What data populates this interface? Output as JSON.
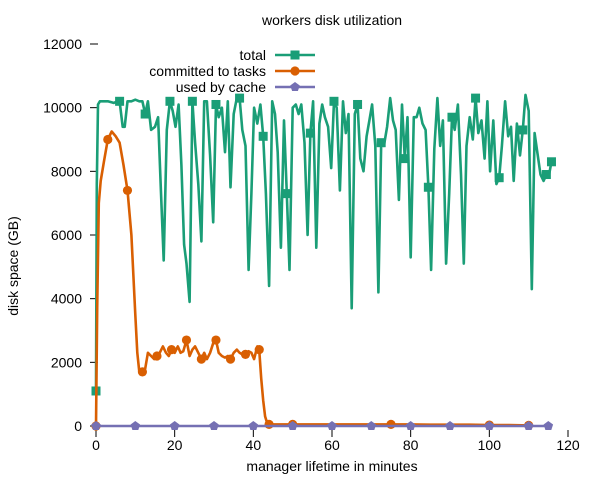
{
  "chart_data": {
    "type": "line",
    "title": "workers disk utilization",
    "xlabel": "manager lifetime in minutes",
    "ylabel": "disk space (GB)",
    "xlim": [
      0,
      120
    ],
    "ylim": [
      0,
      12000
    ],
    "x_ticks": [
      0,
      20,
      40,
      60,
      80,
      100,
      120
    ],
    "y_ticks": [
      0,
      2000,
      4000,
      6000,
      8000,
      10000,
      12000
    ],
    "grid": false,
    "legend_position": "top-right",
    "series": [
      {
        "name": "total",
        "color": "#1a9e77",
        "marker": "square",
        "x": [
          0,
          0.2,
          0.5,
          1.0,
          2.0,
          3.0,
          4.5,
          5.5,
          6.0,
          6.8,
          7.3,
          8.0,
          9.0,
          10.0,
          11.0,
          11.8,
          12.5,
          13.2,
          14.0,
          15.0,
          15.8,
          16.5,
          17.2,
          18.0,
          18.8,
          19.5,
          20.2,
          21.0,
          21.7,
          22.4,
          23.0,
          23.8,
          24.5,
          25.2,
          26.0,
          26.8,
          27.5,
          28.2,
          29.0,
          29.8,
          30.5,
          31.2,
          32.0,
          32.8,
          33.5,
          34.2,
          35.0,
          35.8,
          36.5,
          37.2,
          38.0,
          38.8,
          39.5,
          40.2,
          41.0,
          41.8,
          42.5,
          43.2,
          44.0,
          44.8,
          45.5,
          46.2,
          47.0,
          47.8,
          48.5,
          49.2,
          50.0,
          50.8,
          51.5,
          52.2,
          53.0,
          53.8,
          54.5,
          55.2,
          56.0,
          56.8,
          57.5,
          58.2,
          59.0,
          59.8,
          60.5,
          61.2,
          62.0,
          62.8,
          63.5,
          64.2,
          65.0,
          65.8,
          66.5,
          67.2,
          68.0,
          68.8,
          69.5,
          70.2,
          71.0,
          71.8,
          72.5,
          73.2,
          74.0,
          74.8,
          75.5,
          76.2,
          77.0,
          77.8,
          78.5,
          79.2,
          80.0,
          80.8,
          81.5,
          82.2,
          83.0,
          83.8,
          84.5,
          85.2,
          86.0,
          86.8,
          87.5,
          88.2,
          89.0,
          89.8,
          90.5,
          91.2,
          92.0,
          92.8,
          93.5,
          94.2,
          95.0,
          95.8,
          96.5,
          97.2,
          98.0,
          98.8,
          99.5,
          100.2,
          101.0,
          101.8,
          102.5,
          103.2,
          104.0,
          104.8,
          105.5,
          106.2,
          107.0,
          107.8,
          108.5,
          109.2,
          110.0,
          110.8,
          111.5,
          112.2,
          113.0,
          113.8,
          114.5,
          115.2,
          115.8
        ],
        "values": [
          1100,
          7600,
          10100,
          10200,
          10200,
          10200,
          10150,
          10200,
          10200,
          9400,
          9400,
          10200,
          10200,
          10250,
          10200,
          10200,
          9800,
          10200,
          9300,
          9400,
          9700,
          7400,
          5200,
          9300,
          10200,
          9900,
          9400,
          10100,
          8200,
          5700,
          5100,
          3900,
          10200,
          8900,
          7600,
          5800,
          10200,
          10200,
          8500,
          6400,
          10100,
          9700,
          10000,
          8600,
          10200,
          7500,
          9800,
          10300,
          10300,
          9300,
          8800,
          4900,
          7300,
          10000,
          9500,
          10100,
          9100,
          7300,
          4400,
          10200,
          9800,
          8600,
          5600,
          9600,
          7300,
          4900,
          10000,
          10100,
          9800,
          10100,
          8900,
          6000,
          9200,
          10200,
          5600,
          9500,
          10100,
          9700,
          9400,
          8100,
          10200,
          10000,
          7400,
          10200,
          9200,
          9800,
          3700,
          9800,
          10100,
          8400,
          8000,
          9100,
          9600,
          10100,
          8800,
          4200,
          8900,
          8800,
          9400,
          10300,
          9600,
          9300,
          7100,
          10100,
          8400,
          9700,
          5300,
          9700,
          9700,
          10000,
          9500,
          9300,
          7500,
          4900,
          8700,
          10300,
          8800,
          9600,
          5100,
          7300,
          9700,
          9300,
          10100,
          7900,
          5100,
          8800,
          9700,
          9000,
          10300,
          9200,
          9600,
          8400,
          10200,
          8000,
          9600,
          7600,
          7800,
          8800,
          10200,
          9100,
          9400,
          7700,
          9500,
          8500,
          9300,
          10400,
          9900,
          4300,
          9200,
          8600,
          7900,
          7700,
          7900,
          7900,
          8300
        ]
      },
      {
        "name": "committed to tasks",
        "color": "#d95f02",
        "marker": "circle",
        "x": [
          0,
          0.3,
          0.7,
          1.2,
          2.0,
          3.0,
          4.0,
          5.0,
          6.0,
          7.0,
          8.0,
          9.0,
          10.0,
          10.5,
          11.0,
          11.8,
          12.5,
          13.2,
          14.0,
          14.8,
          15.5,
          16.2,
          17.0,
          17.8,
          18.5,
          19.2,
          20.0,
          20.8,
          21.5,
          22.2,
          23.0,
          23.8,
          24.5,
          25.2,
          26.0,
          26.8,
          27.5,
          28.2,
          29.0,
          29.8,
          30.5,
          31.2,
          32.0,
          32.8,
          33.5,
          34.2,
          35.0,
          35.8,
          36.5,
          37.2,
          38.0,
          38.8,
          39.5,
          40.2,
          41.0,
          41.5,
          42.0,
          42.5,
          43.0,
          43.5,
          44.0,
          44.5,
          45.0,
          46.0,
          48.0,
          50.0,
          55.0,
          60.0,
          65.0,
          70.0,
          75.0,
          80.0,
          85.0,
          90.0,
          95.0,
          100.0,
          105.0,
          110.0
        ],
        "values": [
          0,
          3700,
          7000,
          7700,
          8300,
          9000,
          9250,
          9100,
          8900,
          8200,
          7400,
          6000,
          3500,
          2300,
          1700,
          1700,
          1800,
          2300,
          2200,
          2100,
          2200,
          2300,
          2500,
          2300,
          2200,
          2400,
          2300,
          2500,
          2300,
          2350,
          2700,
          2200,
          2400,
          2500,
          2300,
          2100,
          2300,
          2100,
          2300,
          2600,
          2700,
          2300,
          2200,
          2150,
          2200,
          2100,
          2300,
          2400,
          2300,
          2250,
          2250,
          2350,
          2300,
          2100,
          2500,
          2400,
          1500,
          800,
          300,
          100,
          50,
          50,
          50,
          50,
          50,
          50,
          50,
          50,
          50,
          50,
          50,
          50,
          40,
          40,
          40,
          30,
          30,
          20
        ]
      },
      {
        "name": "used by cache",
        "color": "#7570b3",
        "marker": "pentagon",
        "x": [
          0,
          10,
          20,
          30,
          40,
          50,
          60,
          70,
          80,
          90,
          100,
          110,
          115
        ],
        "values": [
          0,
          0,
          0,
          0,
          0,
          0,
          0,
          0,
          0,
          0,
          0,
          0,
          0
        ]
      }
    ]
  }
}
